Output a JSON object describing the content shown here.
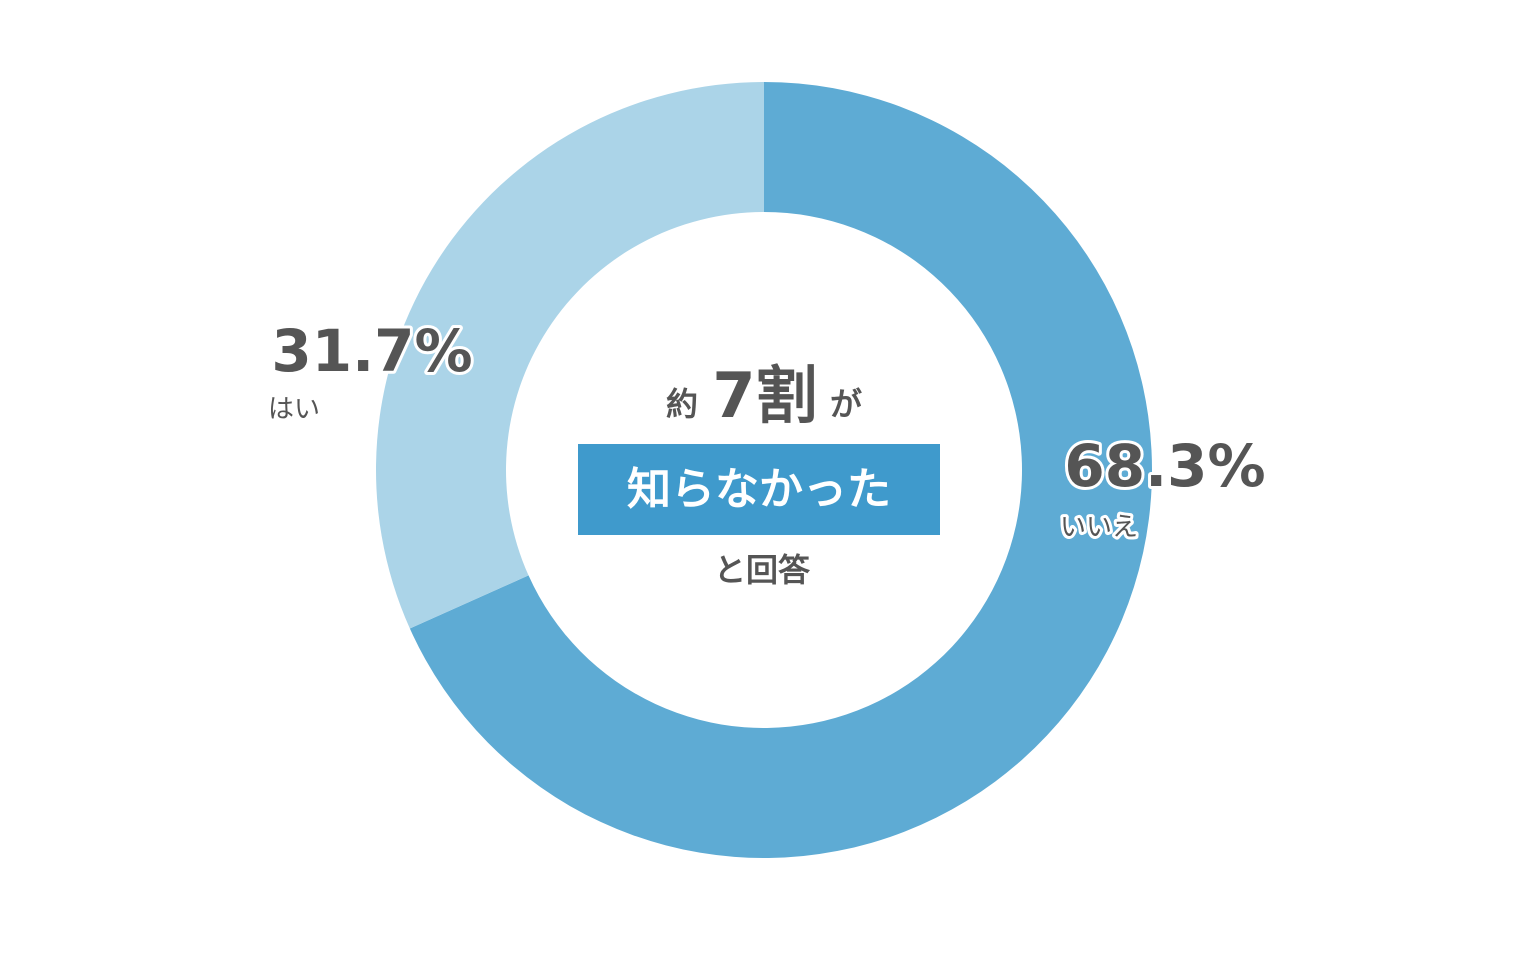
{
  "chart_data": {
    "type": "pie",
    "categories": [
      "いいえ",
      "はい"
    ],
    "values": [
      68.3,
      31.7
    ],
    "value_labels": [
      "68.3%",
      "31.7%"
    ],
    "colors": [
      "#5eabd4",
      "#abd4e8"
    ],
    "center_text": {
      "line1": [
        "約",
        "7割",
        "が"
      ],
      "highlight": "知らなかった",
      "line3": "と回答"
    }
  }
}
